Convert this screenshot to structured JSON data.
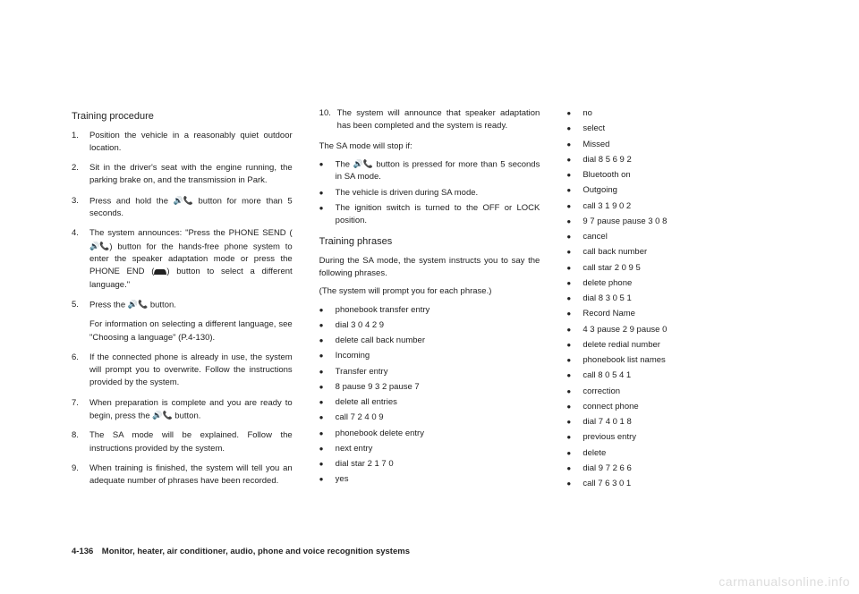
{
  "col1": {
    "heading": "Training procedure",
    "steps": [
      {
        "n": "1.",
        "t": "Position the vehicle in a reasonably quiet outdoor location."
      },
      {
        "n": "2.",
        "t": "Sit in the driver's seat with the engine running, the parking brake on, and the transmission in Park."
      },
      {
        "n": "3.",
        "t": "Press and hold the "
      },
      {
        "n": "4.",
        "t": "The system announces: \"Press the PHONE SEND ("
      },
      {
        "n": "5.",
        "t": "Press the "
      },
      {
        "n": "6.",
        "t": "If the connected phone is already in use, the system will prompt you to overwrite. Follow the instructions provided by the system."
      },
      {
        "n": "7.",
        "t": "When preparation is complete and you are ready to begin, press the "
      },
      {
        "n": "8.",
        "t": "The SA mode will be explained. Follow the instructions provided by the system."
      },
      {
        "n": "9.",
        "t": "When training is finished, the system will tell you an adequate number of phrases have been recorded."
      }
    ],
    "step3_tail": " button for more than 5 seconds.",
    "step4_mid": ") button for the hands-free phone system to enter the speaker adaptation mode or press the PHONE END (",
    "step4_tail": ") button to select a different language.\"",
    "step5_tail": " button.",
    "step5_note": "For information on selecting a different language, see \"Choosing a language\" (P.4-130).",
    "step7_tail": " button."
  },
  "col2": {
    "step10": {
      "n": "10.",
      "t": "The system will announce that speaker adaptation has been completed and the system is ready."
    },
    "stop_intro": "The SA mode will stop if:",
    "stop_items": [
      {
        "pre": "The ",
        "post": " button is pressed for more than 5 seconds in SA mode.",
        "icon": true
      },
      {
        "pre": "The vehicle is driven during SA mode.",
        "post": "",
        "icon": false
      },
      {
        "pre": "The ignition switch is turned to the OFF or LOCK position.",
        "post": "",
        "icon": false
      }
    ],
    "heading2": "Training phrases",
    "p1": "During the SA mode, the system instructs you to say the following phrases.",
    "p2": "(The system will prompt you for each phrase.)",
    "items": [
      "phonebook transfer entry",
      "dial 3 0 4 2 9",
      "delete call back number",
      "Incoming",
      "Transfer entry",
      "8 pause 9 3 2 pause 7",
      "delete all entries",
      "call 7 2 4 0 9",
      "phonebook delete entry",
      "next entry",
      "dial star 2 1 7 0",
      "yes"
    ]
  },
  "col3": {
    "items": [
      "no",
      "select",
      "Missed",
      "dial 8 5 6 9 2",
      "Bluetooth on",
      "Outgoing",
      "call 3 1 9 0 2",
      "9 7 pause pause 3 0 8",
      "cancel",
      "call back number",
      "call star 2 0 9 5",
      "delete phone",
      "dial 8 3 0 5 1",
      "Record Name",
      "4 3 pause 2 9 pause 0",
      "delete redial number",
      "phonebook list names",
      "call 8 0 5 4 1",
      "correction",
      "connect phone",
      "dial 7 4 0 1 8",
      "previous entry",
      "delete",
      "dial 9 7 2 6 6",
      "call 7 6 3 0 1"
    ]
  },
  "footer": "4-136 Monitor, heater, air conditioner, audio, phone and voice recognition systems",
  "watermark": "carmanualsonline.info",
  "icons": {
    "phone": "📞"
  }
}
